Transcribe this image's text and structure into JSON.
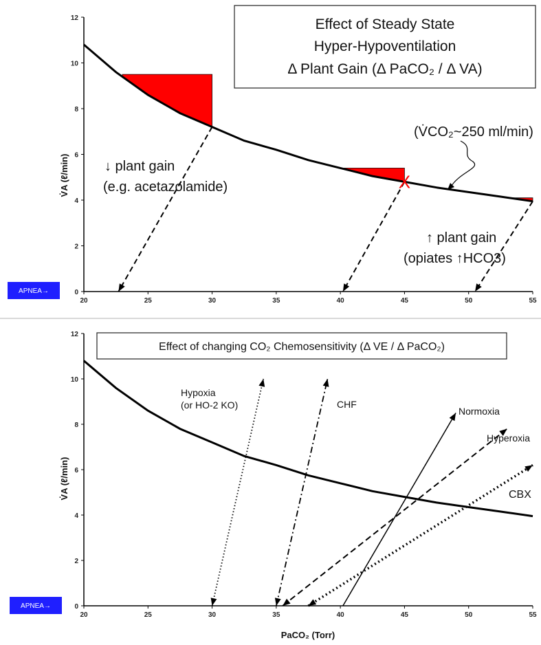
{
  "colors": {
    "curve": "#000000",
    "fill": "#ff0000",
    "apnea_bg": "#1f1fff",
    "apnea_text": "#ffffff"
  },
  "chart_data": [
    {
      "type": "line",
      "title": [
        "Effect of Steady State",
        "Hyper-Hypoventilation",
        "Δ Plant Gain (Δ PaCO₂ / Δ VA)"
      ],
      "ylabel": "V̇A (ℓ/min)",
      "xlim": [
        20,
        55
      ],
      "ylim": [
        0,
        12
      ],
      "x_ticks": [
        "20",
        "25",
        "30",
        "35",
        "40",
        "45",
        "50",
        "55"
      ],
      "y_ticks": [
        "0",
        "2",
        "4",
        "6",
        "8",
        "10",
        "12"
      ],
      "curve": {
        "x": [
          20,
          22.5,
          25,
          27.5,
          30,
          32.5,
          35,
          37.5,
          40,
          42.5,
          45,
          47.5,
          50,
          52.5,
          55
        ],
        "y": [
          10.8,
          9.6,
          8.6,
          7.8,
          7.2,
          6.6,
          6.2,
          5.75,
          5.4,
          5.05,
          4.8,
          4.55,
          4.35,
          4.15,
          3.95
        ]
      },
      "red_regions": [
        {
          "x_left": 23,
          "x_right": 30,
          "y_top": 9.5
        },
        {
          "x_left": 40,
          "x_right": 45,
          "y_top": 5.4
        },
        {
          "x_left": 53,
          "x_right": 55,
          "y_top": 4.1
        }
      ],
      "arrows": [
        {
          "from": [
            30,
            7.2
          ],
          "to": [
            22.7,
            0
          ],
          "style": "dashed"
        },
        {
          "from": [
            45,
            4.8
          ],
          "to": [
            40.2,
            0
          ],
          "style": "dashed"
        },
        {
          "from": [
            55,
            3.95
          ],
          "to": [
            50.5,
            0
          ],
          "style": "dashed"
        }
      ],
      "marker": {
        "x": 45,
        "y": 4.8,
        "label": "X"
      },
      "annotations": {
        "vco2": "(V̇CO₂~250 ml/min)",
        "decrease_line1": "↓ plant gain",
        "decrease_line2": "(e.g. acetazolamide)",
        "increase_line1": "↑ plant gain",
        "increase_line2": "(opiates ↑HCO3)"
      },
      "apnea_label": "APNEA→"
    },
    {
      "type": "line",
      "title": "Effect of changing  CO₂ Chemosensitivity  (Δ VE /  Δ PaCO₂)",
      "xlabel": "PaCO₂ (Torr)",
      "ylabel": "V̇A (ℓ/min)",
      "xlim": [
        20,
        55
      ],
      "ylim": [
        0,
        12
      ],
      "x_ticks": [
        "20",
        "25",
        "30",
        "35",
        "40",
        "45",
        "50",
        "55"
      ],
      "y_ticks": [
        "0",
        "2",
        "4",
        "6",
        "8",
        "10",
        "12"
      ],
      "curve": {
        "x": [
          20,
          22.5,
          25,
          27.5,
          30,
          32.5,
          35,
          37.5,
          40,
          42.5,
          45,
          47.5,
          50,
          52.5,
          55
        ],
        "y": [
          10.8,
          9.6,
          8.6,
          7.8,
          7.2,
          6.6,
          6.2,
          5.75,
          5.4,
          5.05,
          4.8,
          4.55,
          4.35,
          4.15,
          3.95
        ]
      },
      "series": [
        {
          "name": "Hypoxia",
          "name2": "(or HO-2 KO)",
          "from": [
            30,
            0
          ],
          "to": [
            34,
            10
          ],
          "style": "dotted"
        },
        {
          "name": "CHF",
          "from": [
            35,
            0
          ],
          "to": [
            39,
            10
          ],
          "style": "dashdot"
        },
        {
          "name": "Normoxia",
          "from": [
            40.2,
            0
          ],
          "to": [
            49,
            8.5
          ],
          "style": "solid"
        },
        {
          "name": "Hyperoxia",
          "from": [
            35.5,
            0
          ],
          "to": [
            53,
            7.8
          ],
          "style": "dashed"
        },
        {
          "name": "CBX",
          "from": [
            37.5,
            0
          ],
          "to": [
            55,
            6.2
          ],
          "style": "heavydotted"
        }
      ],
      "apnea_label": "APNEA→"
    }
  ]
}
